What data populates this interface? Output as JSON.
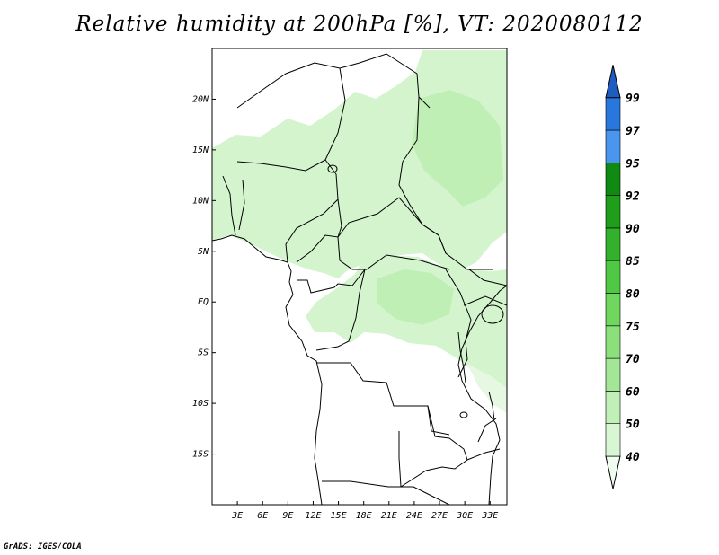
{
  "title": "Relative humidity at 200hPa [%], VT: 2020080112",
  "credit": "GrADS: IGES/COLA",
  "map": {
    "variable": "Relative humidity",
    "level": "200hPa",
    "units": "%",
    "valid_time": "2020080112",
    "lon_range": [
      0,
      35
    ],
    "lat_range": [
      -20,
      25
    ],
    "x_ticks": [
      "3E",
      "6E",
      "9E",
      "12E",
      "15E",
      "18E",
      "21E",
      "24E",
      "27E",
      "30E",
      "33E"
    ],
    "x_tick_values": [
      3,
      6,
      9,
      12,
      15,
      18,
      21,
      24,
      27,
      30,
      33
    ],
    "y_ticks": [
      "20N",
      "15N",
      "10N",
      "5N",
      "EQ",
      "5S",
      "10S",
      "15S"
    ],
    "y_tick_values": [
      20,
      15,
      10,
      5,
      0,
      -5,
      -10,
      -15
    ]
  },
  "colorbar": {
    "levels": [
      "40",
      "50",
      "60",
      "70",
      "75",
      "80",
      "85",
      "90",
      "92",
      "95",
      "97",
      "99"
    ],
    "colors": [
      "#f0fcf0",
      "#d8f6d3",
      "#c0f0b8",
      "#a3e796",
      "#8be07b",
      "#6fd65e",
      "#4fc844",
      "#33b02c",
      "#1e9e1a",
      "#108a10",
      "#4a96ee",
      "#2877dd",
      "#1e5cc0"
    ]
  }
}
